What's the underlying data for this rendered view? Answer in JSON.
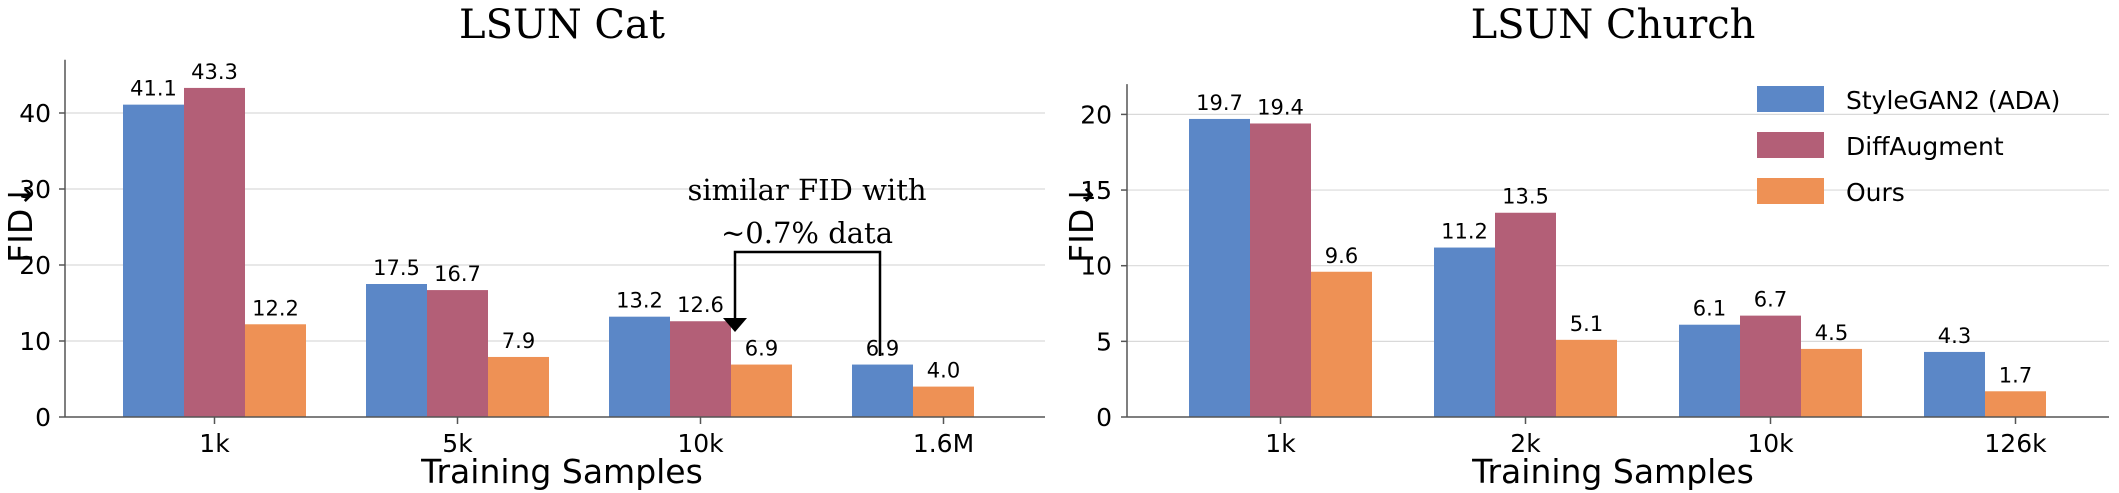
{
  "chart_data": [
    {
      "type": "bar",
      "title": "LSUN Cat",
      "xlabel": "Training Samples",
      "ylabel": "FID↓",
      "ylim": [
        0,
        47
      ],
      "yticks": [
        0,
        10,
        20,
        30,
        40
      ],
      "categories": [
        "1k",
        "5k",
        "10k",
        "1.6M"
      ],
      "series": [
        {
          "name": "StyleGAN2 (ADA)",
          "values": [
            41.1,
            17.5,
            13.2,
            6.9
          ],
          "labels": [
            "41.1",
            "17.5",
            "13.2",
            "6.9"
          ]
        },
        {
          "name": "DiffAugment",
          "values": [
            43.3,
            16.7,
            12.6,
            null
          ],
          "labels": [
            "43.3",
            "16.7",
            "12.6",
            ""
          ]
        },
        {
          "name": "Ours",
          "values": [
            12.2,
            7.9,
            6.9,
            4.0
          ],
          "labels": [
            "12.2",
            "7.9",
            "6.9",
            "4.0"
          ]
        }
      ],
      "annotation": {
        "line1": "similar FID with",
        "line2": "~0.7% data"
      }
    },
    {
      "type": "bar",
      "title": "LSUN Church",
      "xlabel": "Training Samples",
      "ylabel": "FID↓",
      "ylim": [
        0,
        22
      ],
      "yticks": [
        0,
        5,
        10,
        15,
        20
      ],
      "categories": [
        "1k",
        "2k",
        "10k",
        "126k"
      ],
      "series": [
        {
          "name": "StyleGAN2 (ADA)",
          "values": [
            19.7,
            11.2,
            6.1,
            4.3
          ],
          "labels": [
            "19.7",
            "11.2",
            "6.1",
            "4.3"
          ]
        },
        {
          "name": "DiffAugment",
          "values": [
            19.4,
            13.5,
            6.7,
            null
          ],
          "labels": [
            "19.4",
            "13.5",
            "6.7",
            ""
          ]
        },
        {
          "name": "Ours",
          "values": [
            9.6,
            5.1,
            4.5,
            1.7
          ],
          "labels": [
            "9.6",
            "5.1",
            "4.5",
            "1.7"
          ]
        }
      ]
    }
  ],
  "legend": [
    {
      "name": "StyleGAN2 (ADA)",
      "color": "#5b87c7"
    },
    {
      "name": "DiffAugment",
      "color": "#b35f77"
    },
    {
      "name": "Ours",
      "color": "#ee9155"
    }
  ],
  "colors": [
    "#5b87c7",
    "#b35f77",
    "#ee9155"
  ]
}
